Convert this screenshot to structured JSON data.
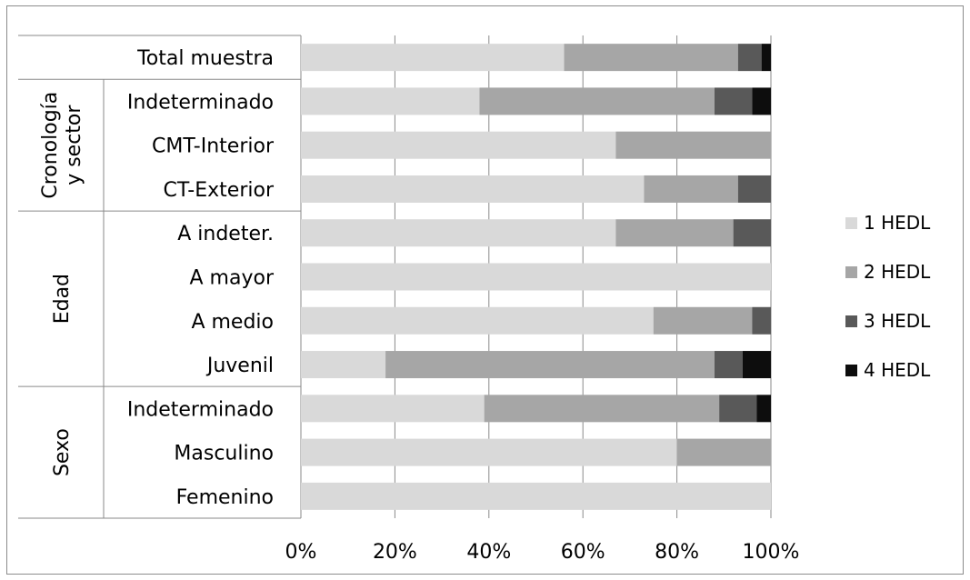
{
  "chart_data": {
    "type": "bar",
    "orientation": "horizontal",
    "stacked": "percent",
    "title": "",
    "xlabel": "",
    "ylabel": "",
    "xlim": [
      0,
      100
    ],
    "x_ticks": [
      "0%",
      "20%",
      "40%",
      "60%",
      "80%",
      "100%"
    ],
    "grid": "vertical",
    "legend_position": "right",
    "categories": [
      "Total muestra",
      "Indeterminado",
      "CMT-Interior",
      "CT-Exterior",
      "A indeter.",
      "A mayor",
      "A medio",
      "Juvenil",
      "Indeterminado",
      "Masculino",
      "Femenino"
    ],
    "groups": [
      {
        "label": "Cronología\ny sector",
        "lines": [
          "Cronología",
          "y sector"
        ],
        "rows": [
          1,
          3
        ]
      },
      {
        "label": "Edad",
        "lines": [
          "Edad"
        ],
        "rows": [
          4,
          7
        ]
      },
      {
        "label": "Sexo",
        "lines": [
          "Sexo"
        ],
        "rows": [
          8,
          10
        ]
      }
    ],
    "series": [
      {
        "name": "1 HEDL",
        "color": "#d9d9d9",
        "values": [
          56,
          38,
          67,
          73,
          67,
          100,
          75,
          18,
          39,
          80,
          100
        ]
      },
      {
        "name": "2 HEDL",
        "color": "#a6a6a6",
        "values": [
          37,
          50,
          33,
          20,
          25,
          0,
          21,
          70,
          50,
          20,
          0
        ]
      },
      {
        "name": "3 HEDL",
        "color": "#595959",
        "values": [
          5,
          8,
          0,
          7,
          8,
          0,
          4,
          6,
          8,
          0,
          0
        ]
      },
      {
        "name": "4 HEDL",
        "color": "#0d0d0d",
        "values": [
          2,
          4,
          0,
          0,
          0,
          0,
          0,
          6,
          3,
          0,
          0
        ]
      }
    ]
  }
}
